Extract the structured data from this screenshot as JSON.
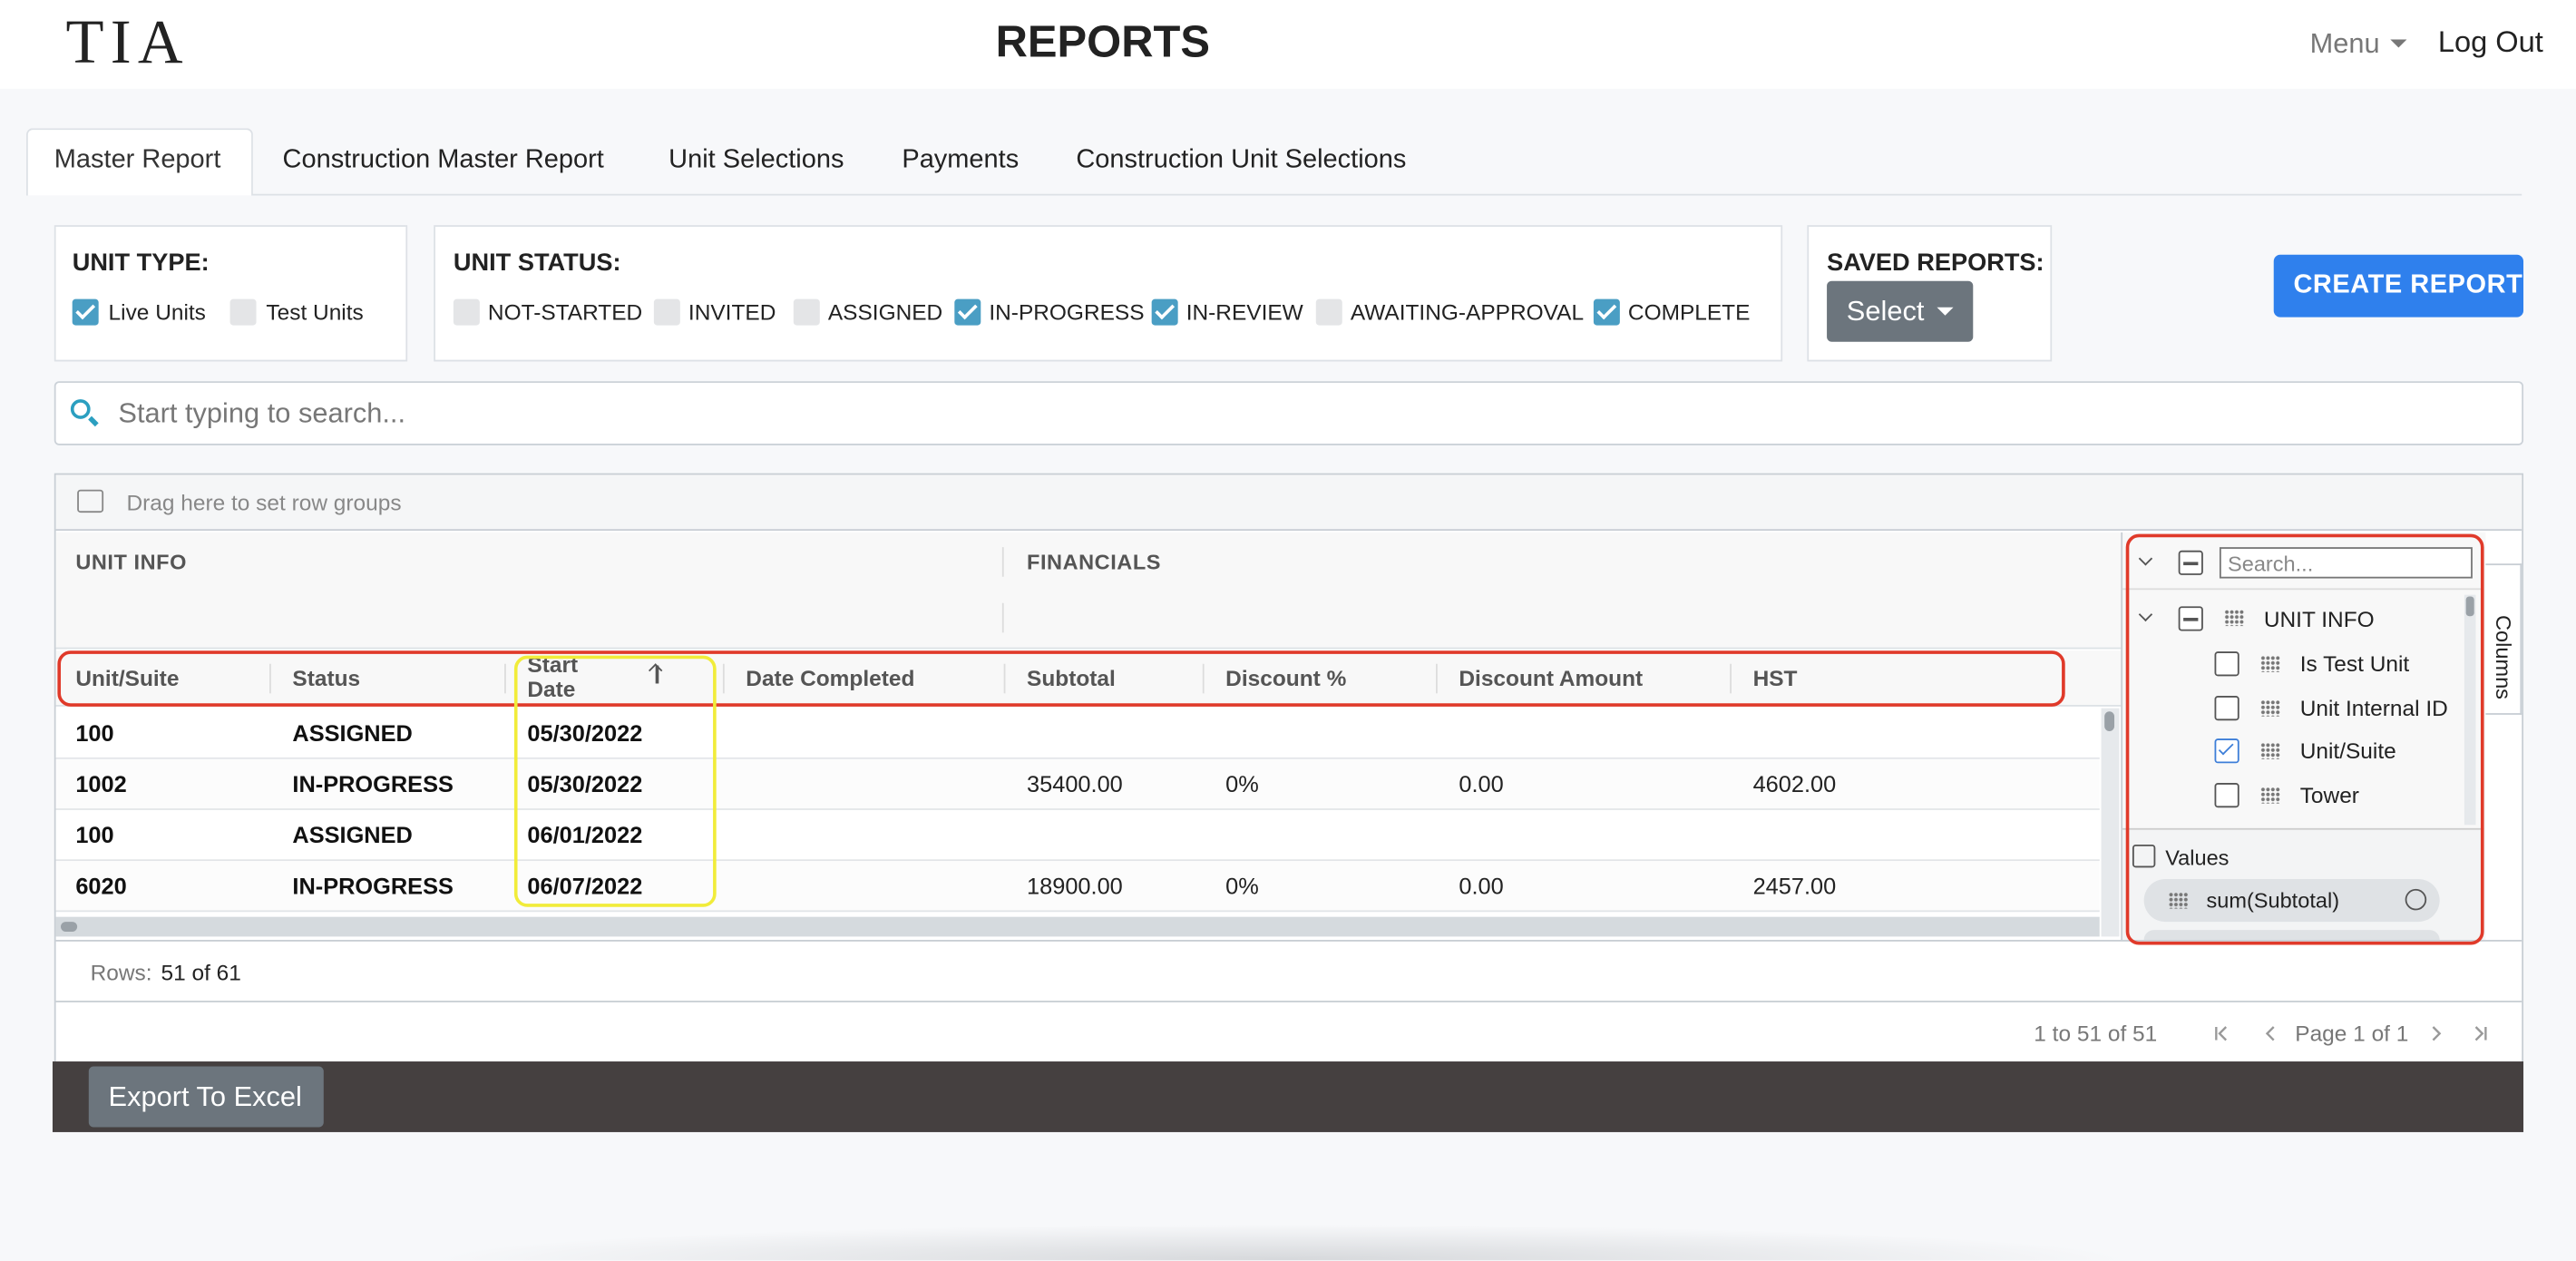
{
  "header": {
    "logo": "TIA",
    "title": "REPORTS",
    "menu": "Menu",
    "logout": "Log Out"
  },
  "tabs": [
    "Master Report",
    "Construction Master Report",
    "Unit Selections",
    "Payments",
    "Construction Unit Selections"
  ],
  "filters": {
    "unit_type": {
      "label": "UNIT TYPE:",
      "options": [
        {
          "label": "Live Units",
          "checked": true
        },
        {
          "label": "Test Units",
          "checked": false
        }
      ]
    },
    "unit_status": {
      "label": "UNIT STATUS:",
      "options": [
        {
          "label": "NOT-STARTED",
          "checked": false
        },
        {
          "label": "INVITED",
          "checked": false
        },
        {
          "label": "ASSIGNED",
          "checked": false
        },
        {
          "label": "IN-PROGRESS",
          "checked": true
        },
        {
          "label": "IN-REVIEW",
          "checked": true
        },
        {
          "label": "AWAITING-APPROVAL",
          "checked": false
        },
        {
          "label": "COMPLETE",
          "checked": true
        }
      ]
    },
    "saved_reports": {
      "label": "SAVED REPORTS:",
      "button": "Select"
    },
    "create_report": "CREATE REPORT"
  },
  "search_placeholder": "Start typing to search...",
  "grid": {
    "row_group_hint": "Drag here to set row groups",
    "groups": [
      "UNIT INFO",
      "FINANCIALS"
    ],
    "columns": [
      "Unit/Suite",
      "Status",
      "Start Date",
      "Date Completed",
      "Subtotal",
      "Discount %",
      "Discount Amount",
      "HST"
    ],
    "rows": [
      [
        "100",
        "ASSIGNED",
        "05/30/2022",
        null,
        null,
        null,
        null,
        null
      ],
      [
        "1002",
        "IN-PROGRESS",
        "05/30/2022",
        null,
        "35400.00",
        "0%",
        "0.00",
        "4602.00"
      ],
      [
        "100",
        "ASSIGNED",
        "06/01/2022",
        null,
        null,
        null,
        null,
        null
      ],
      [
        "6020",
        "IN-PROGRESS",
        "06/07/2022",
        null,
        "18900.00",
        "0%",
        "0.00",
        "2457.00"
      ]
    ],
    "rows_label": "Rows:",
    "rows_value": "51 of 61",
    "pagination": {
      "summary": "1 to 51 of 51",
      "page": "Page 1 of 1"
    }
  },
  "side_panel": {
    "search_placeholder": "Search...",
    "group": "UNIT INFO",
    "items": [
      {
        "label": "Is Test Unit",
        "checked": false
      },
      {
        "label": "Unit Internal ID",
        "checked": false
      },
      {
        "label": "Unit/Suite",
        "checked": true
      },
      {
        "label": "Tower",
        "checked": false
      }
    ],
    "values_label": "Values",
    "values": [
      "sum(Subtotal)"
    ],
    "tab": "Columns"
  },
  "export": "Export To Excel"
}
